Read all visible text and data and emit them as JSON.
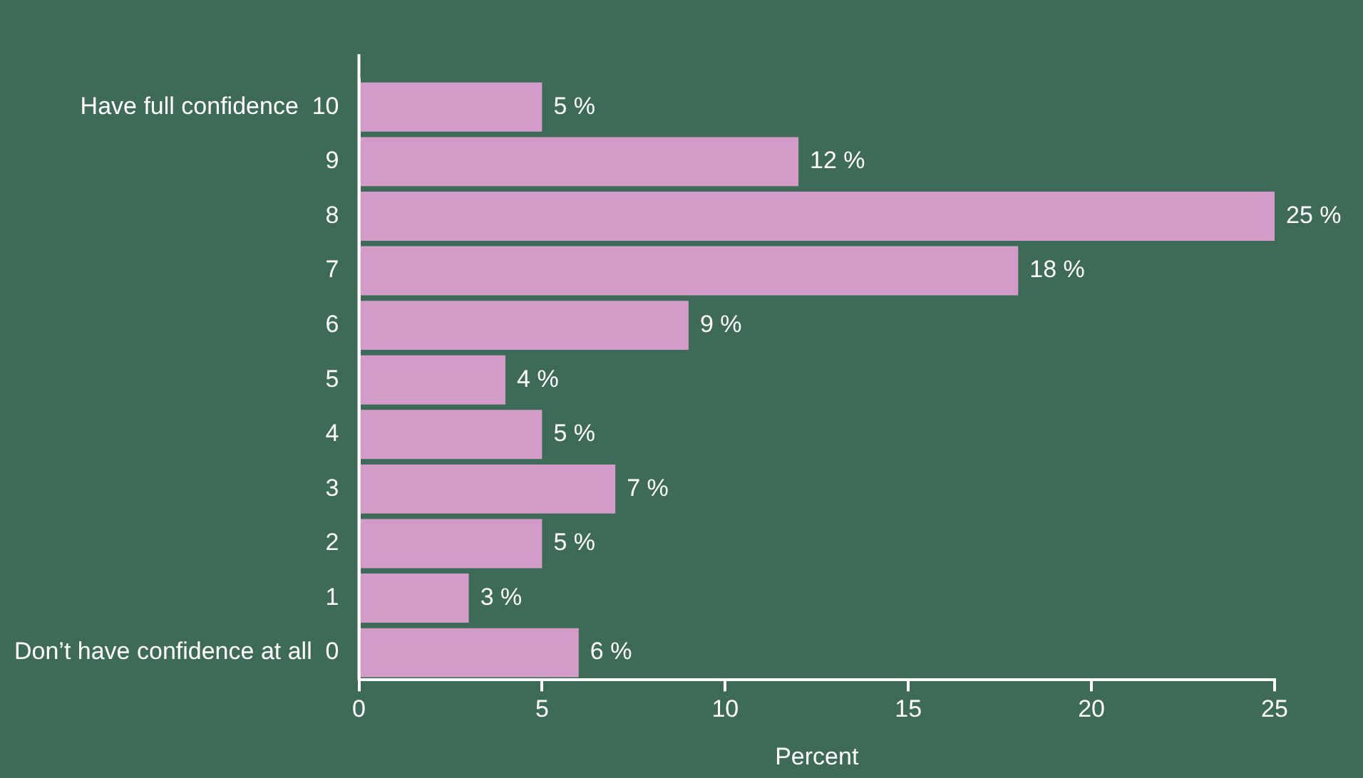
{
  "chart_data": {
    "type": "bar",
    "orientation": "horizontal",
    "xlabel": "Percent",
    "categories": [
      "Have full confidence  10",
      "9",
      "8",
      "7",
      "6",
      "5",
      "4",
      "3",
      "2",
      "1",
      "Don’t have confidence at all  0"
    ],
    "values": [
      5,
      12,
      25,
      18,
      9,
      4,
      5,
      7,
      5,
      3,
      6
    ],
    "value_labels": [
      "5 %",
      "12 %",
      "25 %",
      "18 %",
      "9 %",
      "4 %",
      "5 %",
      "7 %",
      "5 %",
      "3 %",
      "6 %"
    ],
    "color": "#d39bc8",
    "xlim": [
      0,
      25
    ],
    "xticks": [
      0,
      5,
      10,
      15,
      20,
      25
    ],
    "grid": false,
    "legend": false
  }
}
